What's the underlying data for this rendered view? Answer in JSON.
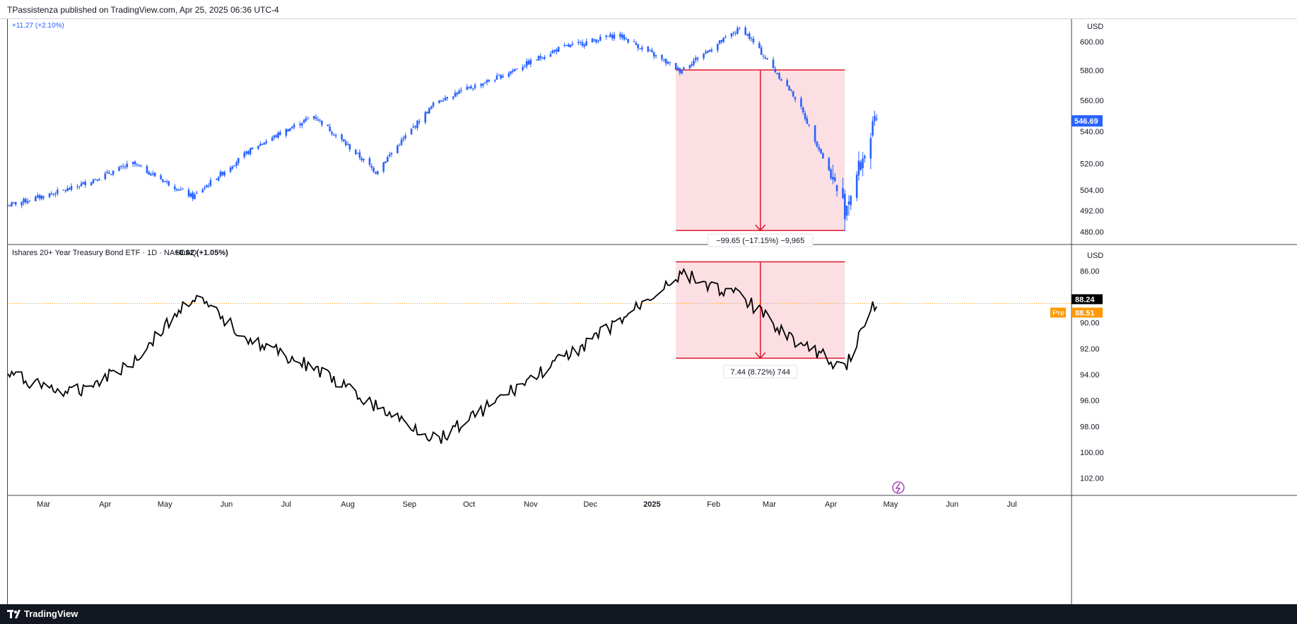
{
  "header": {
    "publisher_text": "TPassistenza published on TradingView.com, Apr 25, 2025 06:36 UTC-4"
  },
  "footer": {
    "brand": "TradingView"
  },
  "colors": {
    "up": "#2962ff",
    "down": "#2962ff",
    "bond_line": "#000000",
    "measure_line": "#e0162b",
    "measure_fill": "#f8c5cb",
    "price_badge": "#2962ff",
    "pre_badge": "#ff9800",
    "last_badge": "#000000",
    "dotted_line": "#ff9800"
  },
  "pane_top": {
    "change_text": "+11.27 (+2.10%)",
    "currency": "USD",
    "last_price_label": "546.69",
    "y_ticks": [
      "600.00",
      "580.00",
      "560.00",
      "540.00",
      "520.00",
      "504.00",
      "492.00",
      "480.00"
    ],
    "measure_label": "−99.65 (−17.15%) −9,965"
  },
  "pane_bottom": {
    "title": "Ishares 20+ Year Treasury Bond ETF · 1D · NASDAQ",
    "change_text": "+0.92 (+1.05%)",
    "currency": "USD",
    "last_price_label": "88.24",
    "pre_label": "Pre",
    "pre_price_label": "88.51",
    "y_ticks": [
      "86.00",
      "90.00",
      "92.00",
      "94.00",
      "96.00",
      "98.00",
      "100.00",
      "102.00"
    ],
    "measure_label": "7.44 (8.72%) 744"
  },
  "x_axis": {
    "ticks": [
      "Mar",
      "Apr",
      "May",
      "Jun",
      "Jul",
      "Aug",
      "Sep",
      "Oct",
      "Nov",
      "Dec",
      "2025",
      "Feb",
      "Mar",
      "Apr",
      "May",
      "Jun",
      "Jul"
    ]
  },
  "chart_data": [
    {
      "type": "line",
      "title": "",
      "series": [
        {
          "name": "",
          "style": "candlestick",
          "x": [
            "2024-02",
            "2024-03",
            "2024-04",
            "2024-05",
            "2024-06",
            "2024-07",
            "2024-08",
            "2024-09",
            "2024-10",
            "2024-11",
            "2024-12",
            "2025-01",
            "2025-02",
            "2025-03",
            "2025-04-08",
            "2025-04-24"
          ],
          "values": [
            495,
            505,
            520,
            500,
            530,
            550,
            515,
            560,
            575,
            595,
            605,
            580,
            610,
            560,
            493,
            546.69
          ]
        }
      ],
      "y_scale": "log",
      "ylim": [
        476,
        612
      ],
      "annotations": [
        {
          "type": "price_range",
          "from": 580.34,
          "to": 480.69,
          "text": "−99.65 (−17.15%) −9,965"
        }
      ]
    },
    {
      "type": "line",
      "title": "Ishares 20+ Year Treasury Bond ETF · 1D · NASDAQ",
      "series": [
        {
          "name": "",
          "x": [
            "2024-02",
            "2024-03",
            "2024-04",
            "2024-05",
            "2024-06",
            "2024-07",
            "2024-08",
            "2024-09",
            "2024-10",
            "2024-11",
            "2024-12",
            "2025-01",
            "2025-02",
            "2025-03",
            "2025-04-08",
            "2025-04-24"
          ],
          "values": [
            94.0,
            95.5,
            93.0,
            88.0,
            91.5,
            93.5,
            96.5,
            99.0,
            96.0,
            93.0,
            90.0,
            86.2,
            88.0,
            91.5,
            93.5,
            88.24
          ]
        }
      ],
      "y_scale": "inverted",
      "ylim": [
        85.0,
        103.0
      ],
      "annotations": [
        {
          "type": "price_range",
          "from": 85.3,
          "to": 92.74,
          "text": "7.44 (8.72%) 744"
        }
      ]
    }
  ]
}
